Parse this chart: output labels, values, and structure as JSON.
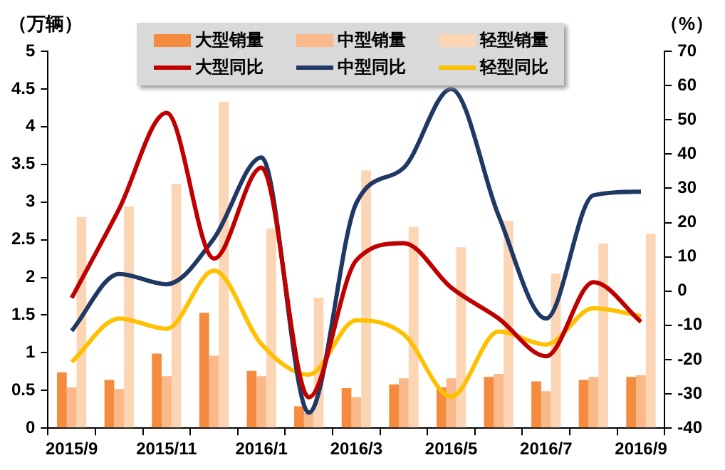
{
  "chart_data": {
    "type": "bar",
    "ylabel": "（万辆）",
    "y2label": "（%）",
    "categories": [
      "2015/9",
      null,
      "2015/11",
      null,
      "2016/1",
      null,
      "2016/3",
      null,
      "2016/5",
      null,
      "2016/7",
      null,
      "2016/9"
    ],
    "series": [
      {
        "name": "大型销量",
        "color": "#f58b3e",
        "values": [
          0.74,
          0.64,
          0.99,
          1.53,
          0.76,
          0.29,
          0.53,
          0.58,
          0.54,
          0.68,
          0.62,
          0.64,
          0.68
        ]
      },
      {
        "name": "中型销量",
        "color": "#f9b98a",
        "values": [
          0.54,
          0.52,
          0.69,
          0.96,
          0.69,
          0.2,
          0.41,
          0.66,
          0.66,
          0.72,
          0.49,
          0.68,
          0.7
        ]
      },
      {
        "name": "轻型销量",
        "color": "#fcd5b5",
        "values": [
          2.8,
          2.94,
          3.24,
          4.33,
          2.65,
          1.73,
          3.42,
          2.67,
          2.4,
          2.75,
          2.05,
          2.45,
          2.58
        ]
      },
      {
        "name": "大型同比",
        "type": "line",
        "axis": "y2",
        "color": "#c00000",
        "values": [
          -2,
          24,
          52,
          9.5,
          36,
          -31,
          9,
          14,
          1,
          -8,
          -19,
          2.6,
          -9
        ]
      },
      {
        "name": "中型同比",
        "type": "line",
        "axis": "y2",
        "color": "#203864",
        "values": [
          -11.6,
          5,
          2,
          15.4,
          39,
          -35.5,
          25.7,
          36,
          59,
          22,
          -8,
          28,
          29
        ]
      },
      {
        "name": "轻型同比",
        "type": "line",
        "axis": "y2",
        "color": "#ffc000",
        "values": [
          -20.7,
          -8,
          -11,
          6,
          -15.5,
          -24.4,
          -8.5,
          -12.6,
          -30.8,
          -11.8,
          -15.6,
          -5,
          -7.3
        ]
      }
    ],
    "ylim": [
      0,
      5
    ],
    "yticks": [
      0,
      0.5,
      1,
      1.5,
      2,
      2.5,
      3,
      3.5,
      4,
      4.5,
      5
    ],
    "y2lim": [
      -40,
      70
    ],
    "y2ticks": [
      -40,
      -30,
      -20,
      -10,
      0,
      10,
      20,
      30,
      40,
      50,
      60,
      70
    ],
    "legend": "top",
    "grid": false,
    "marker": "none"
  }
}
